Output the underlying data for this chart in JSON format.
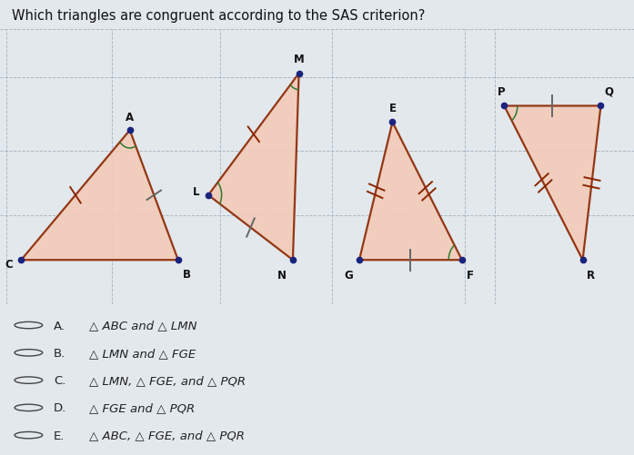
{
  "title": "Which triangles are congruent according to the SAS criterion?",
  "title_bg": "#dce8f0",
  "diagram_bg": "#ccdbe8",
  "outer_bg": "#e2e8ec",
  "triangle_fill": "#f2cbb8",
  "triangle_edge": "#8b2500",
  "dot_color": "#1a237e",
  "grid_color": "#99aabb",
  "tick_color": "#8b2500",
  "arc_color": "#2d7a2d",
  "triangles": {
    "ABC": {
      "A": [
        2.05,
        3.55
      ],
      "B": [
        2.85,
        1.95
      ],
      "C": [
        0.25,
        1.95
      ]
    },
    "LMN": {
      "L": [
        3.35,
        2.75
      ],
      "M": [
        4.85,
        4.25
      ],
      "N": [
        4.75,
        1.95
      ]
    },
    "FGE": {
      "G": [
        5.85,
        1.95
      ],
      "F": [
        7.55,
        1.95
      ],
      "E": [
        6.4,
        3.65
      ]
    },
    "PQR": {
      "P": [
        8.25,
        3.85
      ],
      "Q": [
        9.85,
        3.85
      ],
      "R": [
        9.55,
        1.95
      ]
    }
  },
  "choices": [
    {
      "letter": "A.",
      "text": "△ ABC and △ LMN"
    },
    {
      "letter": "B.",
      "text": "△ LMN and △ FGE"
    },
    {
      "letter": "C.",
      "text": "△ LMN, △ FGE, and △ PQR"
    },
    {
      "letter": "D.",
      "text": "△ FGE and △ PQR"
    },
    {
      "letter": "E.",
      "text": "△ ABC, △ FGE, and △ PQR"
    }
  ],
  "diagram_xlim": [
    -0.1,
    10.4
  ],
  "diagram_ylim": [
    1.4,
    4.8
  ],
  "vgrid_x": [
    0.0,
    1.75,
    3.55,
    5.4,
    7.6,
    8.1,
    10.4
  ],
  "hgrid_y": [
    1.4,
    2.5,
    3.3,
    4.2,
    4.8
  ]
}
